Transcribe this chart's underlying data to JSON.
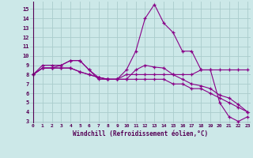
{
  "xlabel": "Windchill (Refroidissement éolien,°C)",
  "bg_color": "#cce8e8",
  "grid_color": "#aacccc",
  "line_color": "#880088",
  "x_hours": [
    0,
    1,
    2,
    3,
    4,
    5,
    6,
    7,
    8,
    9,
    10,
    11,
    12,
    13,
    14,
    15,
    16,
    17,
    18,
    19,
    20,
    21,
    22,
    23
  ],
  "series1": [
    8.0,
    9.0,
    9.0,
    9.0,
    9.5,
    9.5,
    8.5,
    7.5,
    7.5,
    7.5,
    8.5,
    10.5,
    14.0,
    15.5,
    13.5,
    12.5,
    10.5,
    10.5,
    8.5,
    8.5,
    5.0,
    3.5,
    3.0,
    3.5
  ],
  "series2": [
    8.0,
    8.7,
    8.7,
    8.7,
    8.7,
    8.3,
    8.0,
    7.7,
    7.5,
    7.5,
    7.5,
    7.5,
    7.5,
    7.5,
    7.5,
    7.0,
    7.0,
    6.5,
    6.5,
    6.0,
    5.5,
    5.0,
    4.5,
    4.0
  ],
  "series3": [
    8.0,
    8.7,
    8.7,
    8.7,
    8.7,
    8.3,
    8.0,
    7.7,
    7.5,
    7.5,
    7.5,
    8.5,
    9.0,
    8.8,
    8.7,
    8.0,
    7.5,
    7.0,
    6.8,
    6.5,
    5.8,
    5.5,
    4.8,
    4.0
  ],
  "series4": [
    8.0,
    8.7,
    8.7,
    9.0,
    9.5,
    9.5,
    8.5,
    7.7,
    7.5,
    7.5,
    8.0,
    8.0,
    8.0,
    8.0,
    8.0,
    8.0,
    8.0,
    8.0,
    8.5,
    8.5,
    8.5,
    8.5,
    8.5,
    8.5
  ],
  "ylim": [
    2.8,
    15.8
  ],
  "xlim": [
    -0.3,
    23.3
  ],
  "yticks": [
    3,
    4,
    5,
    6,
    7,
    8,
    9,
    10,
    11,
    12,
    13,
    14,
    15
  ],
  "xticks": [
    0,
    1,
    2,
    3,
    4,
    5,
    6,
    7,
    8,
    9,
    10,
    11,
    12,
    13,
    14,
    15,
    16,
    17,
    18,
    19,
    20,
    21,
    22,
    23
  ]
}
